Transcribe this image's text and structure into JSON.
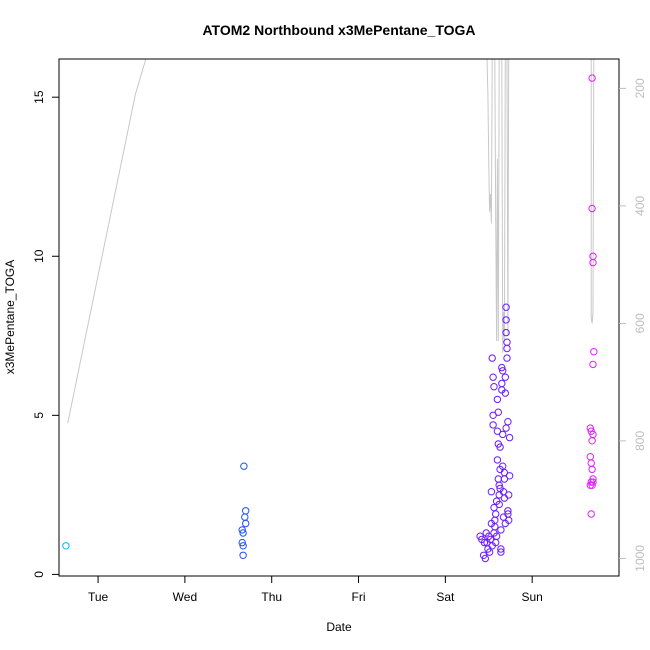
{
  "chart_data": {
    "type": "scatter",
    "title": "ATOM2 Northbound x3MePentane_TOGA",
    "xlabel": "Date",
    "ylabel": "x3MePentane_TOGA",
    "x_axis": {
      "type": "date",
      "ticks": [
        {
          "value": 1,
          "label": "Tue"
        },
        {
          "value": 2,
          "label": "Wed"
        },
        {
          "value": 3,
          "label": "Thu"
        },
        {
          "value": 4,
          "label": "Fri"
        },
        {
          "value": 5,
          "label": "Sat"
        },
        {
          "value": 6,
          "label": "Sun"
        }
      ],
      "range": [
        0.55,
        7.0
      ]
    },
    "y_axis": {
      "range": [
        -0.05,
        16.2
      ],
      "ticks": [
        0,
        5,
        10,
        15
      ]
    },
    "y2_axis": {
      "description": "pressure, inverted",
      "range": [
        1030,
        150
      ],
      "ticks": [
        200,
        400,
        600,
        800,
        1000
      ],
      "color": "#bdbdbd"
    },
    "grid": false,
    "series": [
      {
        "color": "#00b4ff",
        "points": [
          [
            0.63,
            0.9
          ]
        ]
      },
      {
        "color": "#1f4fff",
        "points": [
          [
            2.68,
            3.4
          ],
          [
            2.7,
            2.0
          ],
          [
            2.69,
            1.8
          ],
          [
            2.7,
            1.6
          ],
          [
            2.66,
            1.4
          ],
          [
            2.67,
            1.3
          ],
          [
            2.66,
            1.0
          ],
          [
            2.67,
            0.9
          ],
          [
            2.67,
            0.6
          ]
        ]
      },
      {
        "color": "#6a1bff",
        "points": [
          [
            5.4,
            1.2
          ],
          [
            5.42,
            1.1
          ],
          [
            5.44,
            0.6
          ],
          [
            5.45,
            1.0
          ],
          [
            5.46,
            0.5
          ],
          [
            5.47,
            1.3
          ],
          [
            5.48,
            1.0
          ],
          [
            5.49,
            0.8
          ],
          [
            5.5,
            1.2
          ],
          [
            5.51,
            0.7
          ],
          [
            5.52,
            1.1
          ],
          [
            5.53,
            2.6
          ],
          [
            5.53,
            1.6
          ],
          [
            5.54,
            0.9
          ],
          [
            5.54,
            6.8
          ],
          [
            5.55,
            6.2
          ],
          [
            5.55,
            5.0
          ],
          [
            5.55,
            4.7
          ],
          [
            5.56,
            5.9
          ],
          [
            5.56,
            2.1
          ],
          [
            5.56,
            1.3
          ],
          [
            5.57,
            1.5
          ],
          [
            5.57,
            1.7
          ],
          [
            5.58,
            1.9
          ],
          [
            5.58,
            1.0
          ],
          [
            5.59,
            2.3
          ],
          [
            5.59,
            1.2
          ],
          [
            5.6,
            5.5
          ],
          [
            5.6,
            4.5
          ],
          [
            5.6,
            3.6
          ],
          [
            5.61,
            5.1
          ],
          [
            5.61,
            4.1
          ],
          [
            5.61,
            3.0
          ],
          [
            5.62,
            2.8
          ],
          [
            5.62,
            2.5
          ],
          [
            5.62,
            2.2
          ],
          [
            5.63,
            4.0
          ],
          [
            5.63,
            3.3
          ],
          [
            5.63,
            2.7
          ],
          [
            5.64,
            1.4
          ],
          [
            5.64,
            0.8
          ],
          [
            5.64,
            0.7
          ],
          [
            5.65,
            6.5
          ],
          [
            5.65,
            6.0
          ],
          [
            5.65,
            5.8
          ],
          [
            5.66,
            6.4
          ],
          [
            5.66,
            4.4
          ],
          [
            5.66,
            3.4
          ],
          [
            5.67,
            2.6
          ],
          [
            5.67,
            1.8
          ],
          [
            5.68,
            3.2
          ],
          [
            5.68,
            3.0
          ],
          [
            5.68,
            2.4
          ],
          [
            5.69,
            6.2
          ],
          [
            5.69,
            5.7
          ],
          [
            5.69,
            1.6
          ],
          [
            5.7,
            8.4
          ],
          [
            5.7,
            8.0
          ],
          [
            5.7,
            7.6
          ],
          [
            5.71,
            7.3
          ],
          [
            5.71,
            7.1
          ],
          [
            5.71,
            6.8
          ],
          [
            5.72,
            4.8
          ],
          [
            5.72,
            2.0
          ],
          [
            5.72,
            1.9
          ],
          [
            5.73,
            1.7
          ],
          [
            5.73,
            2.5
          ],
          [
            5.74,
            3.1
          ],
          [
            5.74,
            4.3
          ],
          [
            5.7,
            4.6
          ]
        ]
      },
      {
        "color": "#e020ff",
        "points": [
          [
            6.69,
            15.6
          ],
          [
            6.69,
            11.5
          ],
          [
            6.7,
            10.0
          ],
          [
            6.7,
            9.8
          ],
          [
            6.71,
            7.0
          ],
          [
            6.7,
            6.6
          ],
          [
            6.67,
            4.6
          ],
          [
            6.68,
            4.5
          ],
          [
            6.7,
            4.4
          ],
          [
            6.69,
            4.2
          ],
          [
            6.67,
            3.7
          ],
          [
            6.68,
            3.5
          ],
          [
            6.69,
            3.3
          ],
          [
            6.7,
            3.0
          ],
          [
            6.68,
            2.9
          ],
          [
            6.67,
            2.8
          ],
          [
            6.69,
            2.8
          ],
          [
            6.7,
            2.9
          ],
          [
            6.68,
            1.9
          ]
        ]
      }
    ],
    "pressure_trace": {
      "color": "#c8c8c8",
      "segments": [
        [
          [
            0.65,
            770
          ],
          [
            1.43,
            210
          ],
          [
            1.55,
            150
          ]
        ],
        [
          [
            5.48,
            150
          ],
          [
            5.49,
            210
          ],
          [
            5.5,
            330
          ],
          [
            5.51,
            410
          ],
          [
            5.52,
            380
          ],
          [
            5.53,
            430
          ],
          [
            5.54,
            150
          ]
        ],
        [
          [
            5.57,
            150
          ],
          [
            5.58,
            420
          ],
          [
            5.59,
            630
          ],
          [
            5.6,
            320
          ],
          [
            5.61,
            630
          ],
          [
            5.62,
            150
          ]
        ],
        [
          [
            5.65,
            150
          ],
          [
            5.66,
            650
          ],
          [
            5.67,
            580
          ],
          [
            5.68,
            630
          ],
          [
            5.69,
            150
          ]
        ],
        [
          [
            5.71,
            150
          ],
          [
            5.72,
            620
          ],
          [
            5.73,
            150
          ]
        ],
        [
          [
            6.68,
            150
          ],
          [
            6.68,
            590
          ],
          [
            6.69,
            600
          ],
          [
            6.7,
            580
          ],
          [
            6.71,
            150
          ]
        ]
      ]
    }
  }
}
